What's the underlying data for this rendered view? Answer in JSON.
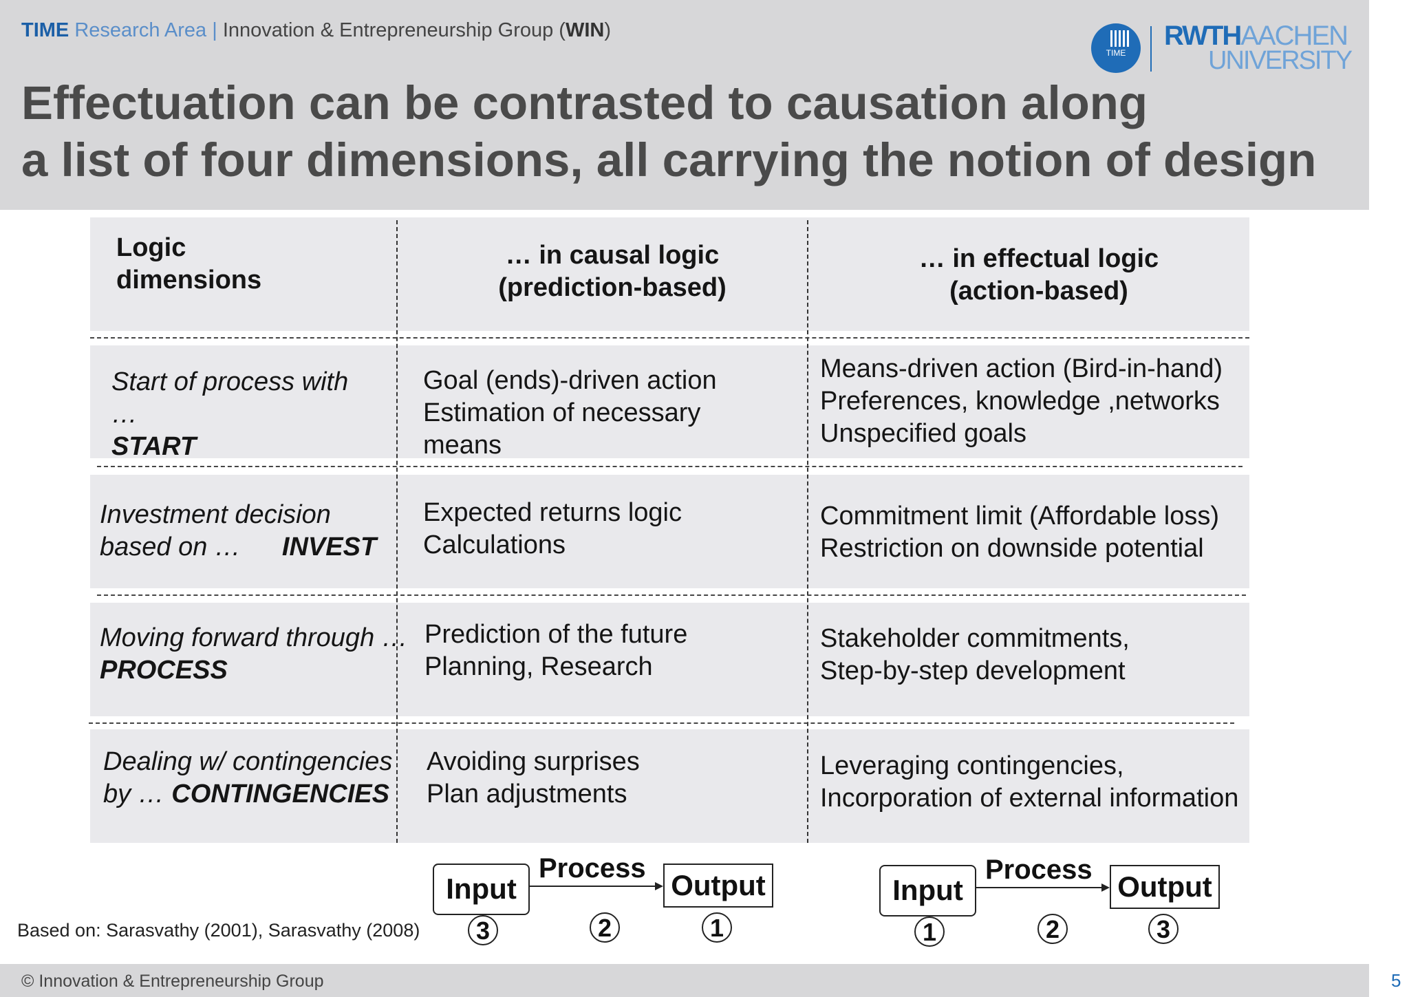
{
  "header": {
    "org_time": "TIME",
    "org_area": "Research Area |",
    "org_group": "Innovation & Entrepreneurship Group (",
    "org_win": "WIN",
    "org_close": ")",
    "title_line1": "Effectuation can be contrasted to causation along",
    "title_line2": "a list of four dimensions, all carrying the notion of design"
  },
  "logo": {
    "circle_text": "TIME",
    "rwth": "RWTH",
    "aachen": "AACHEN",
    "university": "UNIVERSITY"
  },
  "table": {
    "col_headers": {
      "dimension_line1": "Logic",
      "dimension_line2": "dimensions",
      "causal_line1": "… in causal logic",
      "causal_line2": "(prediction-based)",
      "effectual_line1": "… in effectual logic",
      "effectual_line2": "(action-based)"
    },
    "rows": [
      {
        "dim_line1": "Start of process with",
        "dim_line2": "…",
        "dim_key": "START",
        "causal": [
          "Goal (ends)-driven action",
          "Estimation of necessary",
          "means"
        ],
        "effectual": [
          "Means-driven action (Bird-in-hand)",
          "Preferences, knowledge ,networks",
          "Unspecified goals"
        ]
      },
      {
        "dim_line1": "Investment decision",
        "dim_line2": "based on …",
        "dim_key": "INVEST",
        "causal": [
          "Expected returns logic",
          "Calculations"
        ],
        "effectual": [
          "Commitment limit (Affordable loss)",
          "Restriction on downside potential"
        ]
      },
      {
        "dim_line1": "Moving forward through …",
        "dim_key": "PROCESS",
        "causal": [
          "Prediction of the future",
          "Planning, Research"
        ],
        "effectual": [
          "Stakeholder commitments,",
          "Step-by-step development"
        ]
      },
      {
        "dim_line1": "Dealing w/ contingencies",
        "dim_line2": "by …",
        "dim_key": "CONTINGENCIES",
        "causal": [
          "Avoiding surprises",
          "Plan adjustments"
        ],
        "effectual": [
          "Leveraging contingencies,",
          "Incorporation of external information"
        ]
      }
    ]
  },
  "diagrams": {
    "causal": {
      "input": "Input",
      "process": "Process",
      "output": "Output",
      "order": [
        "3",
        "2",
        "1"
      ]
    },
    "effectual": {
      "input": "Input",
      "process": "Process",
      "output": "Output",
      "order": [
        "1",
        "2",
        "3"
      ]
    }
  },
  "source": "Based on: Sarasvathy (2001), Sarasvathy (2008)",
  "footer": {
    "copyright": "© Innovation & Entrepreneurship Group",
    "page_number": "5"
  }
}
